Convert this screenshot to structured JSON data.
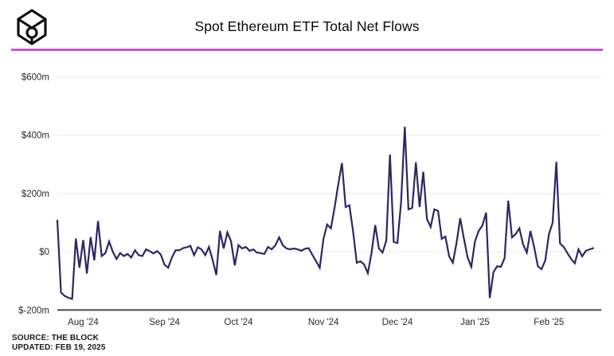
{
  "header": {
    "title": "Spot Ethereum ETF Total Net Flows",
    "logo": "the-block-cube-logo",
    "accent_color": "#bf3ad6"
  },
  "chart_data": {
    "type": "line",
    "title": "Spot Ethereum ETF Total Net Flows",
    "unit": "millions USD",
    "line_color": "#2e2566",
    "grid_color": "#f1f1f1",
    "axis_color": "#4c4c4c",
    "label_color": "#2a2a2a",
    "ylim": [
      -200,
      600
    ],
    "legend": "none",
    "grid": "horizontal",
    "y_ticks": [
      {
        "value": 600,
        "label": "$600m"
      },
      {
        "value": 400,
        "label": "$400m"
      },
      {
        "value": 200,
        "label": "$200m"
      },
      {
        "value": 0,
        "label": "$0"
      },
      {
        "value": -200,
        "label": "$-200m"
      }
    ],
    "x_ticks": [
      {
        "index": 7,
        "label": "Aug '24"
      },
      {
        "index": 29,
        "label": "Sep '24"
      },
      {
        "index": 49,
        "label": "Oct '24"
      },
      {
        "index": 72,
        "label": "Nov '24"
      },
      {
        "index": 92,
        "label": "Dec '24"
      },
      {
        "index": 113,
        "label": "Jan '25"
      },
      {
        "index": 133,
        "label": "Feb '25"
      }
    ],
    "values": [
      107,
      -140,
      -152,
      -158,
      -162,
      45,
      -55,
      40,
      -75,
      50,
      -30,
      105,
      -15,
      -5,
      35,
      0,
      -25,
      -5,
      -15,
      -8,
      -20,
      5,
      -12,
      -15,
      8,
      2,
      -6,
      2,
      -10,
      -45,
      -55,
      -20,
      5,
      5,
      12,
      15,
      20,
      -12,
      15,
      8,
      -12,
      16,
      -27,
      -80,
      71,
      11,
      66,
      36,
      -47,
      22,
      11,
      16,
      3,
      8,
      -3,
      -5,
      -8,
      16,
      8,
      22,
      49,
      22,
      11,
      8,
      11,
      8,
      3,
      10,
      12,
      -11,
      -33,
      -55,
      44,
      93,
      80,
      150,
      230,
      304,
      153,
      159,
      71,
      -38,
      -33,
      -44,
      -74,
      -5,
      91,
      11,
      -3,
      38,
      333,
      33,
      30,
      168,
      428,
      145,
      150,
      306,
      153,
      274,
      112,
      85,
      145,
      140,
      44,
      52,
      -16,
      -38,
      30,
      115,
      44,
      -20,
      -52,
      36,
      71,
      90,
      134,
      -159,
      -70,
      -50,
      -52,
      -22,
      175,
      49,
      60,
      80,
      25,
      -3,
      71,
      16,
      -50,
      -60,
      -30,
      60,
      99,
      308,
      28,
      16,
      -5,
      -25,
      -40,
      8,
      -16,
      3,
      8,
      12
    ]
  },
  "footer": {
    "source_line1": "SOURCE: THE BLOCK",
    "source_line2": "UPDATED: FEB 19, 2025"
  }
}
